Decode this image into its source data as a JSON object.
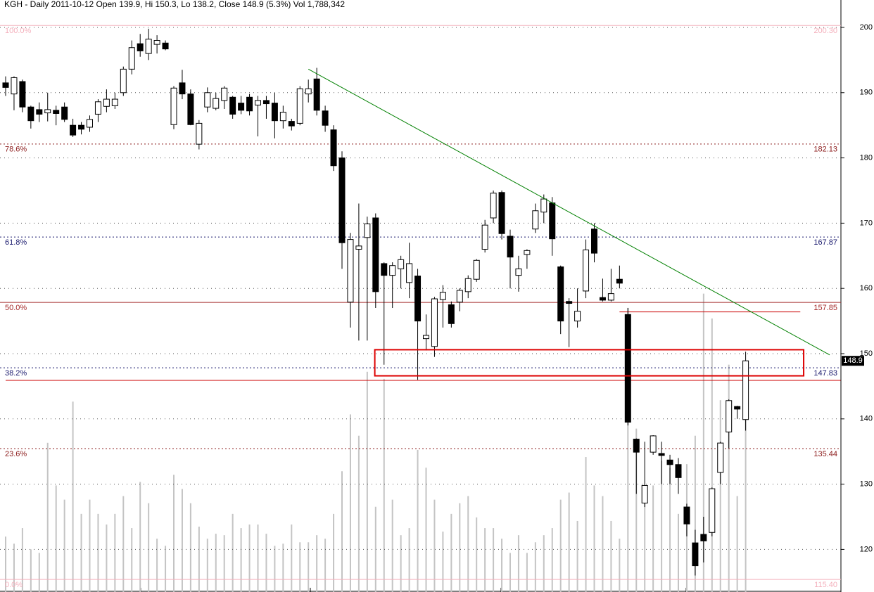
{
  "chart_data": {
    "type": "candlestick",
    "title": "KGH - Daily 2011-10-12 Open 139.9, Hi 150.3, Lo 138.2, Close 148.9 (5.3%) Vol 1,788,342",
    "open": [
      191.5,
      189.8,
      191.7,
      187.8,
      187.4,
      186.9,
      187.3,
      187.8,
      185,
      185,
      184.7,
      186.7,
      187.9,
      188,
      190,
      193.6,
      197.5,
      196,
      197.4,
      197.6,
      185.1,
      191.5,
      189.8,
      182.1,
      187.8,
      187.6,
      188.8,
      189.3,
      188.4,
      189.3,
      188.1,
      188.8,
      188.4,
      185.7,
      185.6,
      185.3,
      189.8,
      192.1,
      187.2,
      184.3,
      180,
      157.9,
      166,
      167.8,
      170.8,
      163.8,
      162,
      163,
      160.9,
      161.9,
      152.3,
      151.1,
      158.3,
      157.5,
      157.9,
      159.5,
      161.4,
      166,
      170.8,
      174.7,
      168,
      162,
      165.2,
      169.1,
      171.7,
      173.1,
      163.3,
      158,
      155,
      159.6,
      169.1,
      158.6,
      158.2,
      161.4,
      156,
      136.9,
      127.1,
      134.9,
      134.7,
      133.7,
      133,
      126.5,
      121,
      122.3,
      122.6,
      131.8,
      138,
      141.9,
      139.9
    ],
    "high": [
      192.5,
      192.5,
      192,
      188,
      188.5,
      190,
      188,
      188.5,
      186,
      185.5,
      186.5,
      189,
      190.5,
      190,
      194,
      198,
      199,
      199.8,
      198.8,
      198,
      191,
      193.5,
      190.5,
      185.8,
      190.8,
      190,
      191,
      189.5,
      189.5,
      189.8,
      189.5,
      189.5,
      190,
      188,
      186,
      191,
      192,
      193.8,
      188,
      185,
      181,
      168.5,
      173,
      171,
      171.5,
      164,
      164,
      165,
      167,
      163,
      156,
      158.7,
      160.5,
      158,
      160,
      162,
      164.5,
      170.5,
      175,
      175,
      169,
      165,
      166,
      173,
      174.4,
      174,
      163.5,
      158.5,
      160,
      167.5,
      170,
      161.5,
      163,
      163.5,
      157,
      137,
      136.5,
      137.5,
      136.5,
      134.5,
      134,
      127,
      123,
      125,
      129.5,
      136.5,
      143,
      142,
      150.3
    ],
    "low": [
      189.5,
      187.3,
      187,
      184.5,
      185.5,
      185.6,
      185,
      185.5,
      183.2,
      183.6,
      184,
      185.5,
      187,
      187.5,
      189.5,
      192.8,
      195.5,
      195,
      196,
      196.5,
      184.4,
      189,
      185,
      181.3,
      187,
      187.3,
      187.5,
      186,
      186.7,
      186.5,
      183.3,
      186,
      183,
      184.5,
      184.2,
      185,
      188.5,
      186.5,
      184,
      178,
      163,
      154,
      152,
      152,
      157,
      148.3,
      157,
      160,
      158.5,
      146,
      150.5,
      149.5,
      154,
      154,
      156.5,
      158.5,
      161,
      165.5,
      170,
      167.5,
      160,
      159.5,
      163,
      168.5,
      170,
      165,
      153,
      151,
      154,
      158.5,
      164,
      158,
      158,
      160,
      139,
      128.5,
      126.5,
      134.5,
      130,
      130,
      128.5,
      122,
      116,
      118,
      122,
      130,
      135.5,
      140,
      138.2
    ],
    "close": [
      190.8,
      192.3,
      187.8,
      185.7,
      186.7,
      187.4,
      186.8,
      185.9,
      183.5,
      184.4,
      185.9,
      188.6,
      189,
      189,
      193.6,
      196.9,
      196.4,
      198.2,
      198,
      196.7,
      190.7,
      189.8,
      185.1,
      185.3,
      190,
      189.1,
      190.7,
      186.7,
      187.3,
      187.2,
      188.8,
      188.3,
      185.7,
      187,
      184.9,
      190.6,
      190.6,
      187.3,
      185,
      178.8,
      167,
      167.5,
      166.5,
      169.9,
      159.5,
      162,
      163.5,
      164.4,
      163.8,
      155,
      152.8,
      158.4,
      159.4,
      154.6,
      159.7,
      161.5,
      164.3,
      169.7,
      174.6,
      168.4,
      164.8,
      163,
      165.8,
      171.9,
      173.7,
      167.6,
      155,
      157.7,
      156.5,
      165.9,
      165.4,
      158.2,
      159.2,
      160.8,
      139.5,
      134.9,
      129.8,
      137.4,
      134.4,
      133,
      131,
      123.9,
      117.5,
      121.3,
      129.3,
      136.3,
      142.8,
      141.5,
      148.9
    ],
    "volume": [
      468000,
      408000,
      540000,
      360000,
      330000,
      1260000,
      900000,
      780000,
      1608000,
      660000,
      780000,
      660000,
      570000,
      660000,
      810000,
      540000,
      930000,
      750000,
      450000,
      390000,
      990000,
      870000,
      750000,
      552000,
      450000,
      492000,
      480000,
      660000,
      540000,
      570000,
      570000,
      492000,
      390000,
      408000,
      570000,
      420000,
      420000,
      480000,
      450000,
      660000,
      1020000,
      1500000,
      1320000,
      1860000,
      720000,
      1800000,
      780000,
      480000,
      540000,
      1200000,
      1050000,
      780000,
      510000,
      660000,
      750000,
      810000,
      630000,
      540000,
      540000,
      450000,
      330000,
      480000,
      330000,
      420000,
      480000,
      540000,
      780000,
      840000,
      600000,
      1140000,
      900000,
      810000,
      600000,
      450000,
      2400000,
      1380000,
      840000,
      900000,
      1110000,
      1050000,
      660000,
      1080000,
      1320000,
      2520000,
      2310000,
      1620000,
      1920000,
      810000,
      1788342
    ],
    "volume_ylim": [
      0,
      5000000
    ],
    "ylim": [
      113.47,
      204.2
    ],
    "yticks": [
      120,
      130,
      140,
      150,
      160,
      170,
      180,
      190,
      200
    ],
    "grid": true,
    "last_price": 148.9,
    "fib_levels": [
      {
        "label": "100.0%",
        "value": 200.3,
        "value_label": "200.30",
        "color": "#f4b0bc",
        "style": "solid"
      },
      {
        "label": "78.6%",
        "value": 182.13,
        "color": "#8b1a1a",
        "style": "dotted"
      },
      {
        "label": "61.8%",
        "value": 167.87,
        "color": "#1a1a6e",
        "style": "dotted"
      },
      {
        "label": "50.0%",
        "value": 157.85,
        "color": "#a52a2a",
        "style": "solid"
      },
      {
        "label": "38.2%",
        "value": 147.83,
        "color": "#1a1a6e",
        "style": "dotted"
      },
      {
        "label": "23.6%",
        "value": 135.44,
        "color": "#8b1a1a",
        "style": "dotted"
      },
      {
        "label": "0.0%",
        "value": 115.4,
        "value_label": "115.40",
        "color": "#f4b0bc",
        "style": "solid"
      }
    ],
    "level_lines": [
      {
        "value": 145.9,
        "from": 0,
        "to": 99.3,
        "color": "#cc0000"
      },
      {
        "value": 156.4,
        "from": 73,
        "to": 94.5,
        "color": "#cc0000"
      }
    ],
    "trendline": {
      "from": [
        36,
        193.6
      ],
      "to": [
        98,
        149.8
      ],
      "color": "#008000"
    },
    "box": {
      "x": [
        43.9,
        94.9
      ],
      "y": [
        146.6,
        150.6
      ],
      "color": "#dd0000"
    }
  }
}
